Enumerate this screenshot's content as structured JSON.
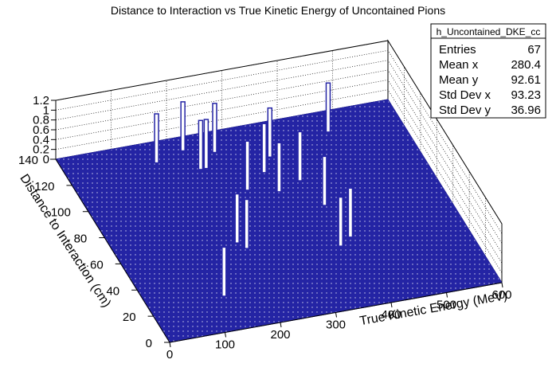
{
  "chart_data": {
    "type": "lego",
    "title": "Distance to Interaction vs True Kinetic Energy of Uncontained Pions",
    "x_label": "True Kinetic Energy (MeV)",
    "y_label": "Distance to Interaction (cm)",
    "xlim": [
      0,
      600
    ],
    "xticks": [
      0,
      100,
      200,
      300,
      400,
      500,
      600
    ],
    "ylim": [
      0,
      140
    ],
    "yticks": [
      0,
      20,
      40,
      60,
      80,
      100,
      120,
      140
    ],
    "zlim": [
      0,
      1.2
    ],
    "zticks": [
      0,
      0.2,
      0.4,
      0.6,
      0.8,
      1,
      1.2
    ],
    "color": "#2424a4",
    "grid": true,
    "points": [
      {
        "x": 470,
        "y": 125,
        "z": 1
      },
      {
        "x": 215,
        "y": 130,
        "z": 1
      },
      {
        "x": 265,
        "y": 125,
        "z": 1
      },
      {
        "x": 160,
        "y": 125,
        "z": 1
      },
      {
        "x": 225,
        "y": 115,
        "z": 1
      },
      {
        "x": 235,
        "y": 115,
        "z": 1
      },
      {
        "x": 350,
        "y": 115,
        "z": 1
      },
      {
        "x": 325,
        "y": 105,
        "z": 1
      },
      {
        "x": 375,
        "y": 95,
        "z": 1
      },
      {
        "x": 280,
        "y": 95,
        "z": 1
      },
      {
        "x": 330,
        "y": 90,
        "z": 1
      },
      {
        "x": 390,
        "y": 75,
        "z": 1
      },
      {
        "x": 210,
        "y": 60,
        "z": 1
      },
      {
        "x": 220,
        "y": 55,
        "z": 1
      },
      {
        "x": 400,
        "y": 50,
        "z": 1
      },
      {
        "x": 375,
        "y": 45,
        "z": 1
      },
      {
        "x": 135,
        "y": 25,
        "z": 1
      }
    ]
  },
  "stats": {
    "title": "h_Uncontained_DKE_cc",
    "rows": [
      {
        "label": "Entries",
        "value": 67
      },
      {
        "label": "Mean x",
        "value": 280.4
      },
      {
        "label": "Mean y",
        "value": 92.61
      },
      {
        "label": "Std Dev x",
        "value": 93.23
      },
      {
        "label": "Std Dev y",
        "value": 36.96
      }
    ]
  }
}
